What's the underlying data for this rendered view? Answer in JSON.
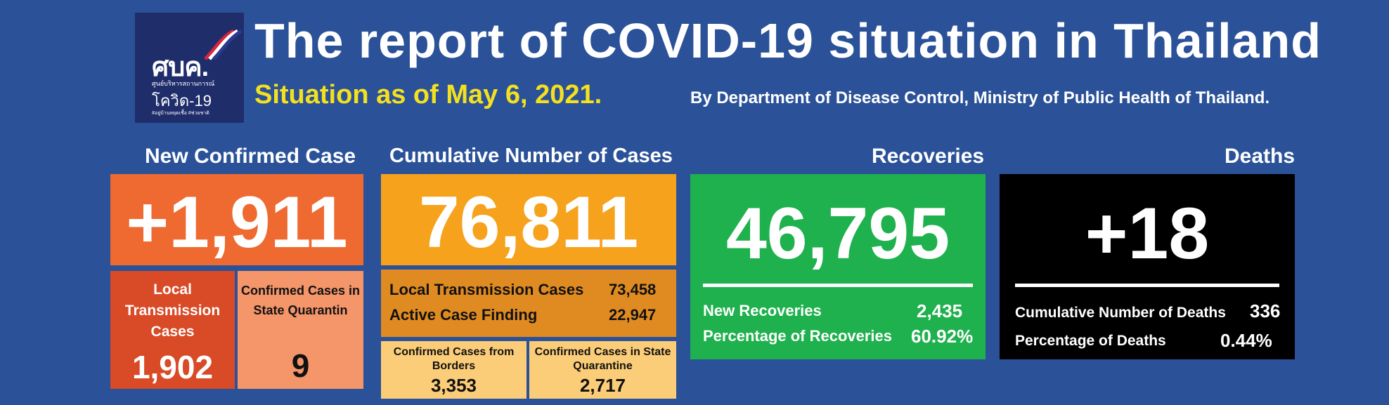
{
  "header": {
    "title": "The report of COVID-19 situation in Thailand",
    "subtitle": "Situation as of May 6, 2021.",
    "byline": "By Department of Disease Control, Ministry of Public Health of Thailand.",
    "logo": {
      "mark": "ศบค.",
      "line1": "ศูนย์บริหารสถานการณ์",
      "line2": "โควิด-19",
      "line3": "#อยู่บ้านหยุดเชื้อ #ช่วยชาติ"
    }
  },
  "new_confirmed": {
    "heading": "New Confirmed Case",
    "value": "+1,911",
    "local_label": "Local Transmission Cases",
    "local_value": "1,902",
    "quarantine_label": "Confirmed Cases in State Quarantin",
    "quarantine_value": "9"
  },
  "cumulative": {
    "heading": "Cumulative Number of Cases",
    "value": "76,811",
    "local_label": "Local Transmission Cases",
    "local_value": "73,458",
    "active_label": "Active Case Finding",
    "active_value": "22,947",
    "borders_label": "Confirmed Cases from Borders",
    "borders_value": "3,353",
    "quarantine_label": "Confirmed Cases in State Quarantine",
    "quarantine_value": "2,717"
  },
  "recoveries": {
    "heading": "Recoveries",
    "value": "46,795",
    "new_label": "New Recoveries",
    "new_value": "2,435",
    "pct_label": "Percentage of Recoveries",
    "pct_value": "60.92%"
  },
  "deaths": {
    "heading": "Deaths",
    "value": "+18",
    "cum_label": "Cumulative Number of Deaths",
    "cum_value": "336",
    "pct_label": "Percentage of Deaths",
    "pct_value": "0.44%"
  },
  "colors": {
    "background": "#2b5298",
    "new_case": "#ee6a30",
    "local_box": "#d94a26",
    "quarantine_box": "#f4956a",
    "cumulative": "#f6a21d",
    "cumulative_sub": "#e08b22",
    "cumulative_small": "#fccd78",
    "recoveries": "#1fb14d",
    "deaths": "#000000",
    "subtitle": "#f4e01f"
  }
}
